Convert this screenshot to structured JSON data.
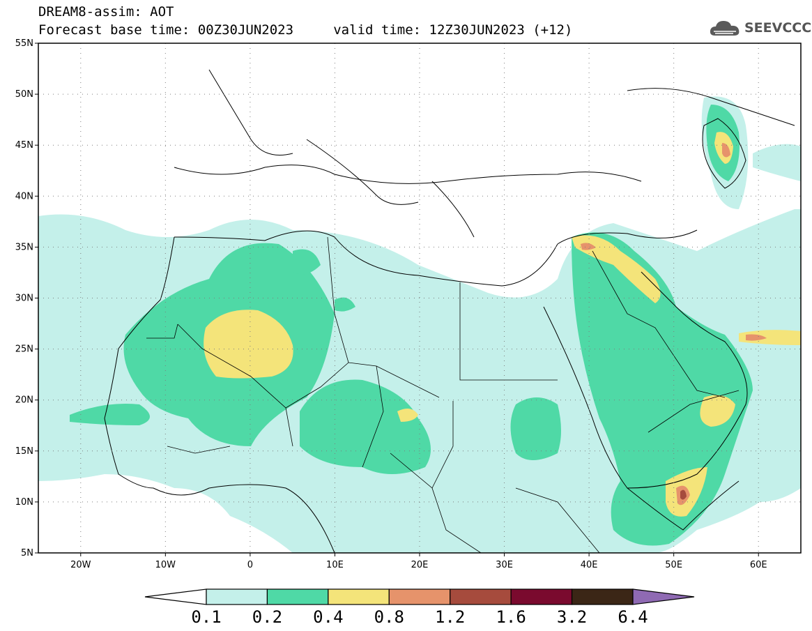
{
  "header": {
    "title_line1": "DREAM8-assim: AOT",
    "title_line2": "Forecast base time: 00Z30JUN2023     valid time: 12Z30JUN2023 (+12)"
  },
  "logo": {
    "text": "SEEVCCC",
    "icon": "cloud-logo-icon"
  },
  "map": {
    "lon_range": [
      -25,
      65
    ],
    "lat_range": [
      5,
      55
    ],
    "lat_ticks": [
      {
        "value": 55,
        "label": "55N"
      },
      {
        "value": 50,
        "label": "50N"
      },
      {
        "value": 45,
        "label": "45N"
      },
      {
        "value": 40,
        "label": "40N"
      },
      {
        "value": 35,
        "label": "35N"
      },
      {
        "value": 30,
        "label": "30N"
      },
      {
        "value": 25,
        "label": "25N"
      },
      {
        "value": 20,
        "label": "20N"
      },
      {
        "value": 15,
        "label": "15N"
      },
      {
        "value": 10,
        "label": "10N"
      },
      {
        "value": 5,
        "label": "5N"
      }
    ],
    "lon_ticks": [
      {
        "value": -20,
        "label": "20W"
      },
      {
        "value": -10,
        "label": "10W"
      },
      {
        "value": 0,
        "label": "0"
      },
      {
        "value": 10,
        "label": "10E"
      },
      {
        "value": 20,
        "label": "20E"
      },
      {
        "value": 30,
        "label": "30E"
      },
      {
        "value": 40,
        "label": "40E"
      },
      {
        "value": 50,
        "label": "50E"
      },
      {
        "value": 60,
        "label": "60E"
      }
    ]
  },
  "colorbar": {
    "colors": [
      "#ffffff",
      "#c4f0ea",
      "#4fd9a6",
      "#f4e47a",
      "#e6936b",
      "#a64b3d",
      "#7a0a2e",
      "#3b2616",
      "#8f6ab3"
    ],
    "labels": [
      "0.1",
      "0.2",
      "0.4",
      "0.8",
      "1.2",
      "1.6",
      "3.2",
      "6.4"
    ]
  }
}
